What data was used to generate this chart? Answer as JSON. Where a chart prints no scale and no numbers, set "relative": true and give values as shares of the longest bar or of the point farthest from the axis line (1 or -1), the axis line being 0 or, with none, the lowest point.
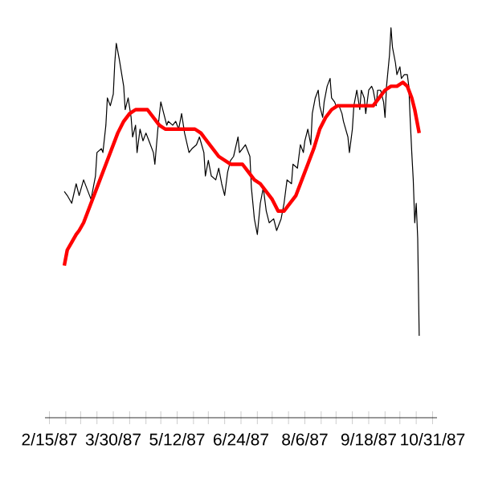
{
  "chart_data": {
    "type": "line",
    "relative": true,
    "xlim": [
      "1987-02-12",
      "1987-11-03"
    ],
    "xticks": [
      {
        "value": "1987-02-15",
        "label": "2/15/87"
      },
      {
        "value": "1987-02-26",
        "label": null
      },
      {
        "value": "1987-03-08",
        "label": null
      },
      {
        "value": "1987-03-19",
        "label": null
      },
      {
        "value": "1987-03-30",
        "label": "3/30/87"
      },
      {
        "value": "1987-04-10",
        "label": null
      },
      {
        "value": "1987-04-21",
        "label": null
      },
      {
        "value": "1987-05-01",
        "label": null
      },
      {
        "value": "1987-05-12",
        "label": "5/12/87"
      },
      {
        "value": "1987-05-23",
        "label": null
      },
      {
        "value": "1987-06-02",
        "label": null
      },
      {
        "value": "1987-06-13",
        "label": null
      },
      {
        "value": "1987-06-24",
        "label": "6/24/87"
      },
      {
        "value": "1987-07-05",
        "label": null
      },
      {
        "value": "1987-07-15",
        "label": null
      },
      {
        "value": "1987-07-26",
        "label": null
      },
      {
        "value": "1987-08-06",
        "label": "8/6/87"
      },
      {
        "value": "1987-08-17",
        "label": null
      },
      {
        "value": "1987-08-27",
        "label": null
      },
      {
        "value": "1987-09-07",
        "label": null
      },
      {
        "value": "1987-09-18",
        "label": "9/18/87"
      },
      {
        "value": "1987-09-29",
        "label": null
      },
      {
        "value": "1987-10-09",
        "label": null
      },
      {
        "value": "1987-10-20",
        "label": null
      },
      {
        "value": "1987-10-31",
        "label": "10/31/87"
      }
    ],
    "series": [
      {
        "color": "#000000",
        "x": [
          "1987-02-25",
          "1987-02-27",
          "1987-03-02",
          "1987-03-05",
          "1987-03-07",
          "1987-03-10",
          "1987-03-12",
          "1987-03-15",
          "1987-03-18",
          "1987-03-19",
          "1987-03-22",
          "1987-03-23",
          "1987-03-25",
          "1987-03-26",
          "1987-03-28",
          "1987-03-30",
          "1987-03-31",
          "1987-04-01",
          "1987-04-03",
          "1987-04-06",
          "1987-04-07",
          "1987-04-09",
          "1987-04-11",
          "1987-04-12",
          "1987-04-14",
          "1987-04-15",
          "1987-04-17",
          "1987-04-19",
          "1987-04-21",
          "1987-04-23",
          "1987-04-26",
          "1987-04-27",
          "1987-04-29",
          "1987-05-01",
          "1987-05-03",
          "1987-05-05",
          "1987-05-06",
          "1987-05-09",
          "1987-05-11",
          "1987-05-13",
          "1987-05-15",
          "1987-05-17",
          "1987-05-20",
          "1987-05-22",
          "1987-05-25",
          "1987-05-27",
          "1987-05-30",
          "1987-05-31",
          "1987-06-02",
          "1987-06-04",
          "1987-06-07",
          "1987-06-09",
          "1987-06-11",
          "1987-06-13",
          "1987-06-15",
          "1987-06-17",
          "1987-06-19",
          "1987-06-22",
          "1987-06-23",
          "1987-06-25",
          "1987-06-27",
          "1987-06-30",
          "1987-07-01",
          "1987-07-03",
          "1987-07-05",
          "1987-07-07",
          "1987-07-09",
          "1987-07-11",
          "1987-07-13",
          "1987-07-16",
          "1987-07-18",
          "1987-07-21",
          "1987-07-23",
          "1987-07-25",
          "1987-07-28",
          "1987-07-29",
          "1987-08-01",
          "1987-08-03",
          "1987-08-05",
          "1987-08-06",
          "1987-08-08",
          "1987-08-10",
          "1987-08-11",
          "1987-08-13",
          "1987-08-15",
          "1987-08-16",
          "1987-08-18",
          "1987-08-19",
          "1987-08-21",
          "1987-08-23",
          "1987-08-24",
          "1987-08-26",
          "1987-08-27",
          "1987-08-29",
          "1987-08-31",
          "1987-09-01",
          "1987-09-04",
          "1987-09-05",
          "1987-09-07",
          "1987-09-08",
          "1987-09-10",
          "1987-09-12",
          "1987-09-13",
          "1987-09-15",
          "1987-09-16",
          "1987-09-18",
          "1987-09-20",
          "1987-09-21",
          "1987-09-23",
          "1987-09-24",
          "1987-09-26",
          "1987-09-28",
          "1987-09-29",
          "1987-09-30",
          "1987-10-02",
          "1987-10-03",
          "1987-10-04",
          "1987-10-06",
          "1987-10-07",
          "1987-10-09",
          "1987-10-10",
          "1987-10-12",
          "1987-10-14",
          "1987-10-15",
          "1987-10-16",
          "1987-10-17",
          "1987-10-18",
          "1987-10-19",
          "1987-10-20",
          "1987-10-21",
          "1987-10-22"
        ],
        "values": [
          0.58,
          0.57,
          0.55,
          0.6,
          0.57,
          0.61,
          0.59,
          0.56,
          0.62,
          0.68,
          0.69,
          0.68,
          0.75,
          0.82,
          0.8,
          0.83,
          0.91,
          0.96,
          0.92,
          0.85,
          0.79,
          0.82,
          0.77,
          0.72,
          0.75,
          0.68,
          0.74,
          0.71,
          0.73,
          0.71,
          0.68,
          0.65,
          0.74,
          0.81,
          0.78,
          0.75,
          0.76,
          0.75,
          0.76,
          0.74,
          0.78,
          0.73,
          0.68,
          0.69,
          0.7,
          0.72,
          0.68,
          0.62,
          0.66,
          0.62,
          0.61,
          0.64,
          0.6,
          0.57,
          0.63,
          0.66,
          0.67,
          0.72,
          0.68,
          0.69,
          0.7,
          0.67,
          0.59,
          0.51,
          0.47,
          0.55,
          0.59,
          0.53,
          0.5,
          0.51,
          0.48,
          0.51,
          0.55,
          0.61,
          0.6,
          0.65,
          0.64,
          0.7,
          0.68,
          0.71,
          0.74,
          0.7,
          0.78,
          0.82,
          0.84,
          0.8,
          0.77,
          0.81,
          0.85,
          0.87,
          0.82,
          0.81,
          0.8,
          0.8,
          0.78,
          0.76,
          0.72,
          0.68,
          0.74,
          0.8,
          0.84,
          0.79,
          0.84,
          0.82,
          0.78,
          0.84,
          0.85,
          0.84,
          0.8,
          0.84,
          0.84,
          0.81,
          0.77,
          0.85,
          0.93,
          1.0,
          0.95,
          0.91,
          0.88,
          0.9,
          0.87,
          0.88,
          0.88,
          0.85,
          0.76,
          0.68,
          0.61,
          0.5,
          0.55,
          0.46,
          0.21
        ]
      },
      {
        "color": "#ff0000",
        "x": [
          "1987-02-25",
          "1987-02-27",
          "1987-03-02",
          "1987-03-05",
          "1987-03-07",
          "1987-03-10",
          "1987-03-13",
          "1987-03-17",
          "1987-03-21",
          "1987-03-25",
          "1987-03-29",
          "1987-04-02",
          "1987-04-06",
          "1987-04-10",
          "1987-04-14",
          "1987-04-18",
          "1987-04-22",
          "1987-04-26",
          "1987-04-30",
          "1987-05-04",
          "1987-05-08",
          "1987-05-12",
          "1987-05-16",
          "1987-05-20",
          "1987-05-24",
          "1987-05-28",
          "1987-06-01",
          "1987-06-05",
          "1987-06-09",
          "1987-06-13",
          "1987-06-17",
          "1987-06-21",
          "1987-06-25",
          "1987-06-29",
          "1987-07-03",
          "1987-07-07",
          "1987-07-11",
          "1987-07-15",
          "1987-07-19",
          "1987-07-23",
          "1987-07-27",
          "1987-07-31",
          "1987-08-04",
          "1987-08-08",
          "1987-08-12",
          "1987-08-16",
          "1987-08-20",
          "1987-08-24",
          "1987-08-28",
          "1987-09-01",
          "1987-09-09",
          "1987-09-17",
          "1987-09-21",
          "1987-09-25",
          "1987-09-29",
          "1987-10-03",
          "1987-10-07",
          "1987-10-11",
          "1987-10-14",
          "1987-10-17",
          "1987-10-19",
          "1987-10-22"
        ],
        "values": [
          0.39,
          0.43,
          0.45,
          0.47,
          0.48,
          0.5,
          0.53,
          0.57,
          0.61,
          0.65,
          0.69,
          0.73,
          0.76,
          0.78,
          0.79,
          0.79,
          0.79,
          0.77,
          0.75,
          0.74,
          0.74,
          0.74,
          0.74,
          0.74,
          0.74,
          0.73,
          0.71,
          0.69,
          0.67,
          0.66,
          0.65,
          0.65,
          0.65,
          0.63,
          0.61,
          0.6,
          0.58,
          0.56,
          0.53,
          0.53,
          0.55,
          0.57,
          0.61,
          0.65,
          0.69,
          0.74,
          0.77,
          0.79,
          0.8,
          0.8,
          0.8,
          0.8,
          0.8,
          0.82,
          0.84,
          0.85,
          0.85,
          0.86,
          0.85,
          0.82,
          0.79,
          0.73
        ]
      }
    ]
  }
}
